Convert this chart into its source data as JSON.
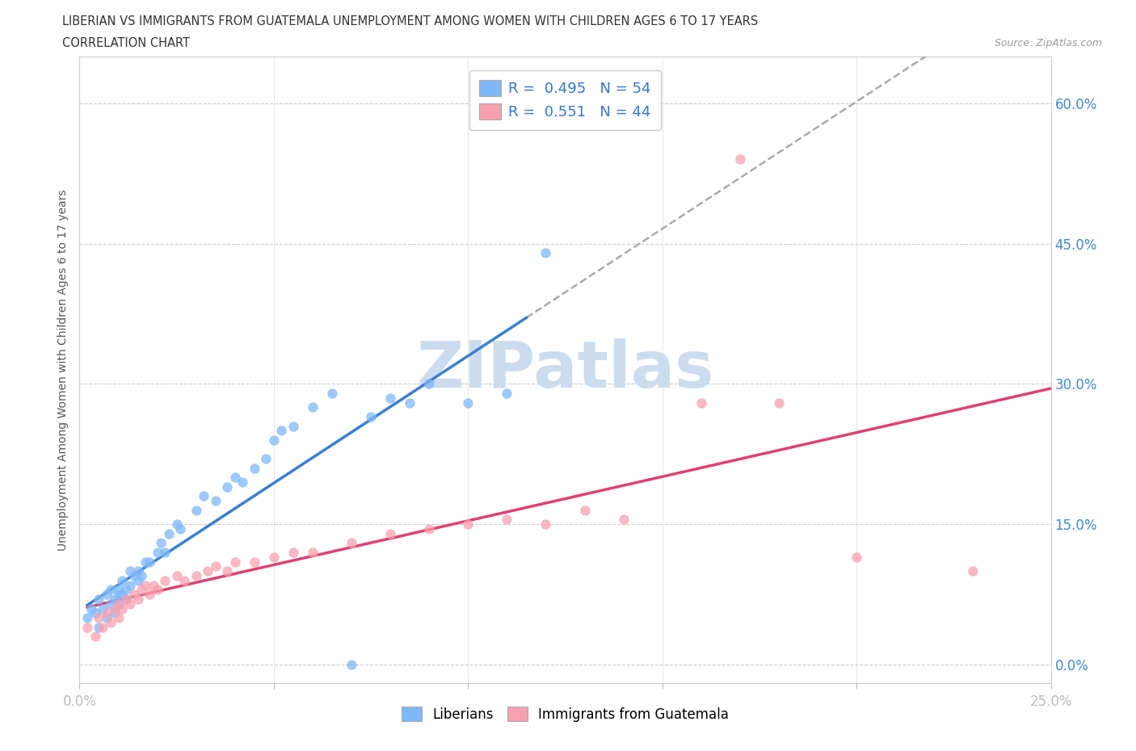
{
  "title_line1": "LIBERIAN VS IMMIGRANTS FROM GUATEMALA UNEMPLOYMENT AMONG WOMEN WITH CHILDREN AGES 6 TO 17 YEARS",
  "title_line2": "CORRELATION CHART",
  "source_text": "Source: ZipAtlas.com",
  "ylabel": "Unemployment Among Women with Children Ages 6 to 17 years",
  "xlim": [
    0.0,
    0.25
  ],
  "ylim": [
    -0.02,
    0.65
  ],
  "yticks": [
    0.0,
    0.15,
    0.3,
    0.45,
    0.6
  ],
  "ytick_labels": [
    "0.0%",
    "15.0%",
    "30.0%",
    "45.0%",
    "60.0%"
  ],
  "xticks": [
    0.0,
    0.05,
    0.1,
    0.15,
    0.2,
    0.25
  ],
  "xtick_labels": [
    "0.0%",
    "",
    "",
    "",
    "",
    "25.0%"
  ],
  "liberian_R": 0.495,
  "liberian_N": 54,
  "guatemala_R": 0.551,
  "guatemala_N": 44,
  "liberian_color": "#7eb8f7",
  "guatemala_color": "#f7a0b0",
  "liberian_line_color": "#3a7fd5",
  "guatemala_line_color": "#e04070",
  "trendline_dash_color": "#aaaaaa",
  "watermark_color": "#ccdcef",
  "liberian_x": [
    0.002,
    0.003,
    0.004,
    0.005,
    0.005,
    0.006,
    0.007,
    0.007,
    0.008,
    0.008,
    0.009,
    0.009,
    0.01,
    0.01,
    0.01,
    0.011,
    0.011,
    0.012,
    0.012,
    0.013,
    0.013,
    0.014,
    0.015,
    0.015,
    0.016,
    0.017,
    0.018,
    0.02,
    0.021,
    0.022,
    0.023,
    0.025,
    0.026,
    0.03,
    0.032,
    0.035,
    0.038,
    0.04,
    0.042,
    0.045,
    0.048,
    0.05,
    0.052,
    0.055,
    0.06,
    0.065,
    0.07,
    0.075,
    0.08,
    0.085,
    0.09,
    0.1,
    0.11,
    0.12
  ],
  "liberian_y": [
    0.05,
    0.06,
    0.055,
    0.04,
    0.07,
    0.06,
    0.075,
    0.05,
    0.065,
    0.08,
    0.055,
    0.07,
    0.065,
    0.08,
    0.075,
    0.075,
    0.09,
    0.08,
    0.07,
    0.085,
    0.1,
    0.095,
    0.09,
    0.1,
    0.095,
    0.11,
    0.11,
    0.12,
    0.13,
    0.12,
    0.14,
    0.15,
    0.145,
    0.165,
    0.18,
    0.175,
    0.19,
    0.2,
    0.195,
    0.21,
    0.22,
    0.24,
    0.25,
    0.255,
    0.275,
    0.29,
    0.0,
    0.265,
    0.285,
    0.28,
    0.3,
    0.28,
    0.29,
    0.44
  ],
  "guatemala_x": [
    0.002,
    0.004,
    0.005,
    0.006,
    0.007,
    0.008,
    0.009,
    0.01,
    0.01,
    0.011,
    0.012,
    0.013,
    0.014,
    0.015,
    0.016,
    0.017,
    0.018,
    0.019,
    0.02,
    0.022,
    0.025,
    0.027,
    0.03,
    0.033,
    0.035,
    0.038,
    0.04,
    0.045,
    0.05,
    0.055,
    0.06,
    0.07,
    0.08,
    0.09,
    0.1,
    0.11,
    0.12,
    0.13,
    0.14,
    0.16,
    0.17,
    0.18,
    0.2,
    0.23
  ],
  "guatemala_y": [
    0.04,
    0.03,
    0.05,
    0.04,
    0.055,
    0.045,
    0.06,
    0.05,
    0.065,
    0.06,
    0.07,
    0.065,
    0.075,
    0.07,
    0.08,
    0.085,
    0.075,
    0.085,
    0.08,
    0.09,
    0.095,
    0.09,
    0.095,
    0.1,
    0.105,
    0.1,
    0.11,
    0.11,
    0.115,
    0.12,
    0.12,
    0.13,
    0.14,
    0.145,
    0.15,
    0.155,
    0.15,
    0.165,
    0.155,
    0.28,
    0.54,
    0.28,
    0.115,
    0.1
  ]
}
